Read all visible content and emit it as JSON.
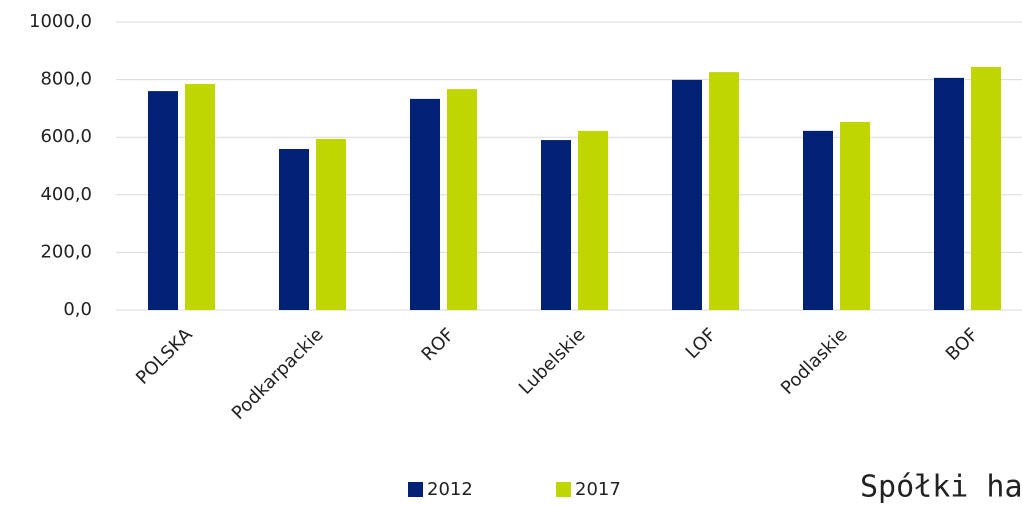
{
  "chart_data": {
    "type": "bar",
    "categories": [
      "POLSKA",
      "Podkarpackie",
      "ROF",
      "Lubelskie",
      "LOF",
      "Podlaskie",
      "BOF"
    ],
    "series": [
      {
        "name": "2012",
        "color": "#002174",
        "values": [
          760,
          559,
          733,
          590,
          799,
          622,
          806
        ]
      },
      {
        "name": "2017",
        "color": "#bfd600",
        "values": [
          785,
          594,
          767,
          622,
          826,
          653,
          844
        ]
      }
    ],
    "ylim": [
      0,
      1000
    ],
    "yticks": [
      {
        "value": 0,
        "label": "0,0"
      },
      {
        "value": 200,
        "label": "200,0"
      },
      {
        "value": 400,
        "label": "400,0"
      },
      {
        "value": 600,
        "label": "600,0"
      },
      {
        "value": 800,
        "label": "800,0"
      },
      {
        "value": 1000,
        "label": "1000,0"
      }
    ],
    "grid": true,
    "annotation": "Spółki ha"
  }
}
